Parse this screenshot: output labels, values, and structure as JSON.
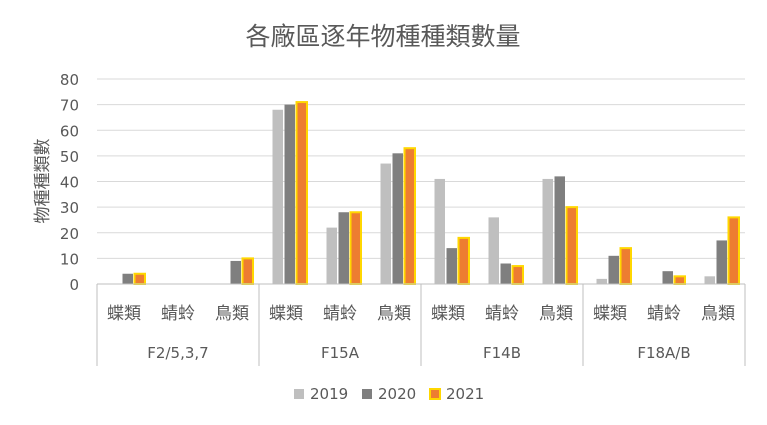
{
  "chart_data": {
    "type": "bar",
    "title": "各廠區逐年物種種類數量",
    "ylabel": "物種種類數",
    "ylim": [
      0,
      80
    ],
    "yticks": [
      0,
      10,
      20,
      30,
      40,
      50,
      60,
      70,
      80
    ],
    "groups": [
      {
        "label": "F2/5,3,7",
        "categories": [
          "蝶類",
          "蜻蛉",
          "鳥類"
        ]
      },
      {
        "label": "F15A",
        "categories": [
          "蝶類",
          "蜻蛉",
          "鳥類"
        ]
      },
      {
        "label": "F14B",
        "categories": [
          "蝶類",
          "蜻蛉",
          "鳥類"
        ]
      },
      {
        "label": "F18A/B",
        "categories": [
          "蝶類",
          "蜻蛉",
          "鳥類"
        ]
      }
    ],
    "series": [
      {
        "name": "2019",
        "color": "#bfbfbf",
        "values": [
          0,
          0,
          0,
          68,
          22,
          47,
          41,
          26,
          41,
          2,
          0,
          3
        ]
      },
      {
        "name": "2020",
        "color": "#7f7f7f",
        "values": [
          4,
          0,
          9,
          70,
          28,
          51,
          14,
          8,
          42,
          11,
          5,
          17
        ]
      },
      {
        "name": "2021",
        "color": "#ed7d31",
        "stroke": "#ffd700",
        "values": [
          4,
          0,
          10,
          71,
          28,
          53,
          18,
          7,
          30,
          14,
          3,
          26
        ]
      }
    ],
    "legend": "bottom"
  }
}
